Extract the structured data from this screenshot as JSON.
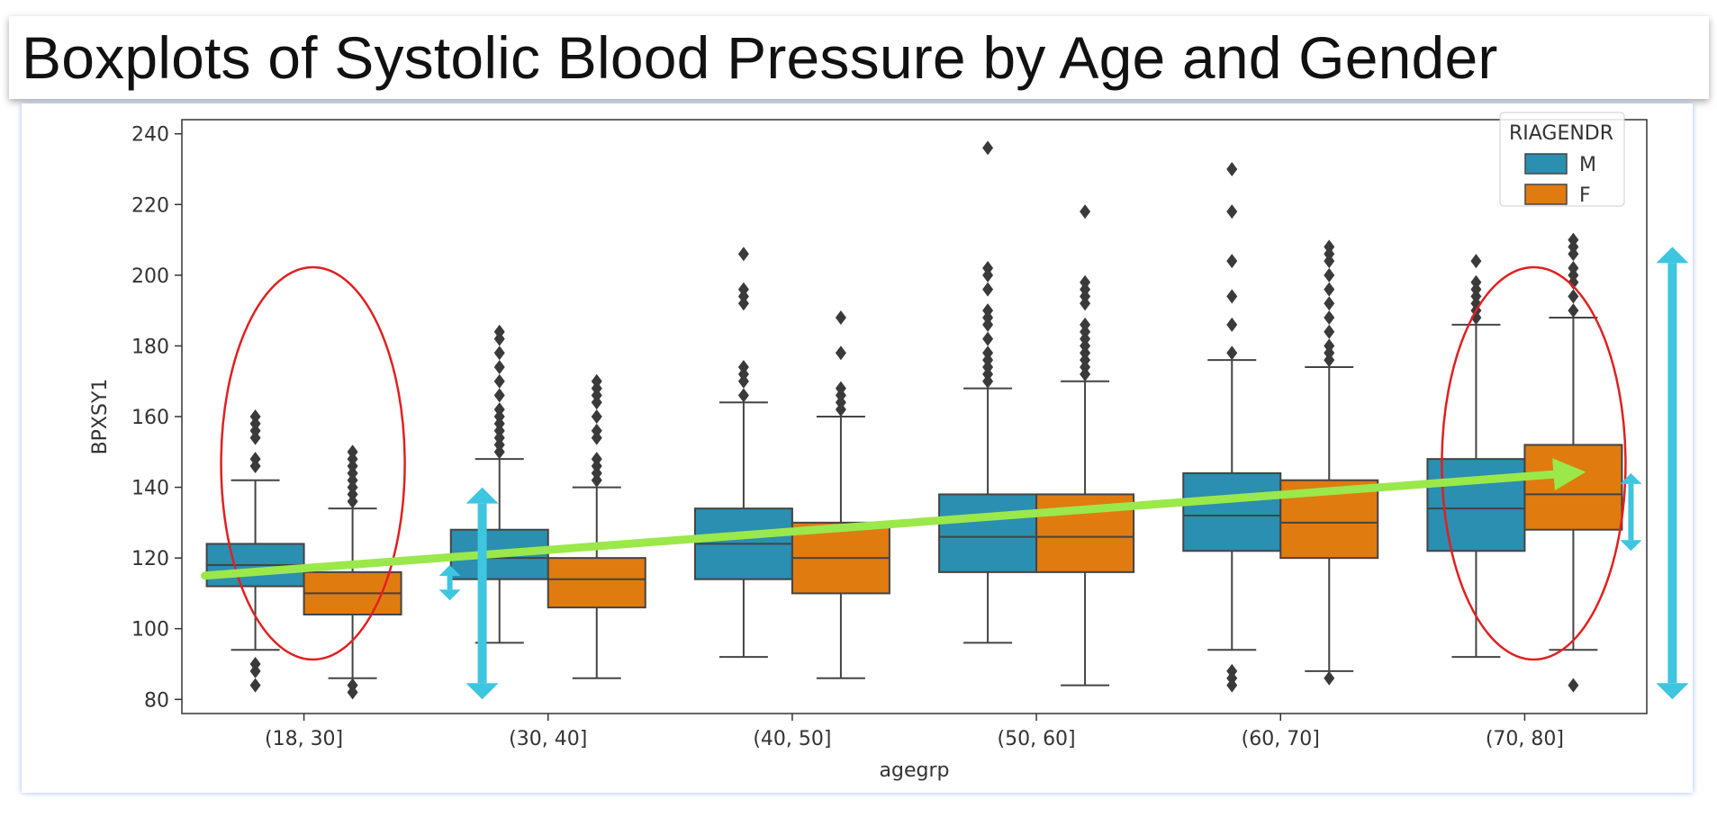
{
  "title": "Boxplots of Systolic Blood Pressure by Age and Gender",
  "colors": {
    "M": "#2a8fb0",
    "F": "#e07b10",
    "trend": "#9be84a",
    "arrow": "#3ec6e0",
    "highlight": "#e02020"
  },
  "chart_data": {
    "type": "box",
    "xlabel": "agegrp",
    "ylabel": "BPXSY1",
    "ylim": [
      76,
      244
    ],
    "yticks": [
      80,
      100,
      120,
      140,
      160,
      180,
      200,
      220,
      240
    ],
    "categories": [
      "(18, 30]",
      "(30, 40]",
      "(40, 50]",
      "(50, 60]",
      "(60, 70]",
      "(70, 80]"
    ],
    "legend": {
      "title": "RIAGENDR",
      "position": "top-right",
      "entries": [
        "M",
        "F"
      ]
    },
    "series": [
      {
        "name": "M",
        "boxes": [
          {
            "whislo": 94,
            "q1": 112,
            "med": 118,
            "q3": 124,
            "whishi": 142,
            "fliers": [
              84,
              88,
              90,
              146,
              148,
              154,
              156,
              158,
              160
            ]
          },
          {
            "whislo": 96,
            "q1": 114,
            "med": 120,
            "q3": 128,
            "whishi": 148,
            "fliers": [
              150,
              152,
              154,
              156,
              158,
              160,
              162,
              166,
              170,
              174,
              178,
              182,
              184
            ]
          },
          {
            "whislo": 92,
            "q1": 114,
            "med": 124,
            "q3": 134,
            "whishi": 164,
            "fliers": [
              166,
              170,
              172,
              174,
              192,
              194,
              196,
              206
            ]
          },
          {
            "whislo": 96,
            "q1": 116,
            "med": 126,
            "q3": 138,
            "whishi": 168,
            "fliers": [
              170,
              172,
              174,
              176,
              178,
              182,
              186,
              188,
              190,
              196,
              200,
              202,
              236
            ]
          },
          {
            "whislo": 94,
            "q1": 122,
            "med": 132,
            "q3": 144,
            "whishi": 176,
            "fliers": [
              84,
              86,
              88,
              178,
              186,
              194,
              204,
              218,
              230
            ]
          },
          {
            "whislo": 92,
            "q1": 122,
            "med": 134,
            "q3": 148,
            "whishi": 186,
            "fliers": [
              188,
              190,
              192,
              194,
              196,
              198,
              204
            ]
          }
        ]
      },
      {
        "name": "F",
        "boxes": [
          {
            "whislo": 86,
            "q1": 104,
            "med": 110,
            "q3": 116,
            "whishi": 134,
            "fliers": [
              82,
              84,
              136,
              138,
              140,
              142,
              144,
              146,
              148,
              150
            ]
          },
          {
            "whislo": 86,
            "q1": 106,
            "med": 114,
            "q3": 120,
            "whishi": 140,
            "fliers": [
              142,
              144,
              146,
              148,
              154,
              156,
              160,
              164,
              166,
              168,
              170
            ]
          },
          {
            "whislo": 86,
            "q1": 110,
            "med": 120,
            "q3": 130,
            "whishi": 160,
            "fliers": [
              162,
              164,
              166,
              168,
              178,
              188
            ]
          },
          {
            "whislo": 84,
            "q1": 116,
            "med": 126,
            "q3": 138,
            "whishi": 170,
            "fliers": [
              172,
              174,
              176,
              178,
              180,
              182,
              184,
              186,
              192,
              194,
              196,
              198,
              218
            ]
          },
          {
            "whislo": 88,
            "q1": 120,
            "med": 130,
            "q3": 142,
            "whishi": 174,
            "fliers": [
              86,
              176,
              178,
              180,
              184,
              188,
              192,
              196,
              200,
              204,
              206,
              208
            ]
          },
          {
            "whislo": 94,
            "q1": 128,
            "med": 138,
            "q3": 152,
            "whishi": 188,
            "fliers": [
              84,
              190,
              194,
              198,
              200,
              202,
              206,
              208,
              210
            ]
          }
        ]
      }
    ],
    "annotations": {
      "trend_line": {
        "from": {
          "category": 0,
          "y": 115
        },
        "to": {
          "category": 5,
          "y": 144
        }
      },
      "highlighted_groups": [
        "(18, 30]",
        "(70, 80]"
      ],
      "spread_arrows": [
        {
          "category": 0,
          "y_range": [
            80,
            140
          ]
        },
        {
          "category": 0,
          "y_range": [
            108,
            118
          ]
        },
        {
          "category": 5,
          "y_range": [
            122,
            144
          ]
        },
        {
          "category": 5,
          "y_range": [
            80,
            208
          ]
        }
      ]
    }
  }
}
